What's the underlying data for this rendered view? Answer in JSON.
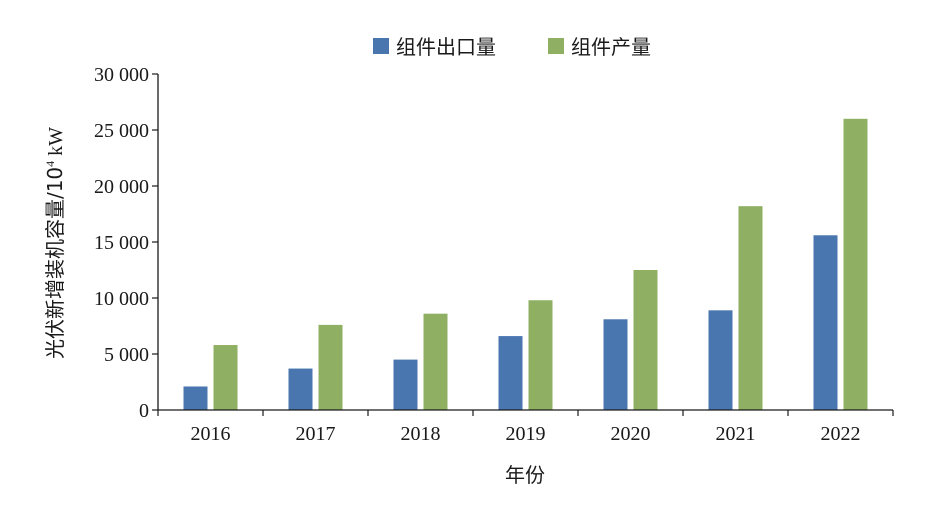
{
  "chart_data": {
    "type": "bar",
    "categories": [
      "2016",
      "2017",
      "2018",
      "2019",
      "2020",
      "2021",
      "2022"
    ],
    "series": [
      {
        "name": "组件出口量",
        "color": "#4a76b0",
        "values": [
          2100,
          3700,
          4500,
          6600,
          8100,
          8900,
          15600
        ]
      },
      {
        "name": "组件产量",
        "color": "#8fb062",
        "values": [
          5800,
          7600,
          8600,
          9800,
          12500,
          18200,
          26000
        ]
      }
    ],
    "title": "",
    "xlabel": "年份",
    "ylabel": "光伏新增装机容量/10",
    "ylabel_exponent": "4",
    "ylabel_unit": " kW",
    "ylim": [
      0,
      30000
    ],
    "yticks": [
      0,
      5000,
      10000,
      15000,
      20000,
      25000,
      30000
    ],
    "ytick_labels": [
      "0",
      "5 000",
      "10 000",
      "15 000",
      "20 000",
      "25 000",
      "30 000"
    ],
    "legend_position": "top-center",
    "grid": false
  }
}
